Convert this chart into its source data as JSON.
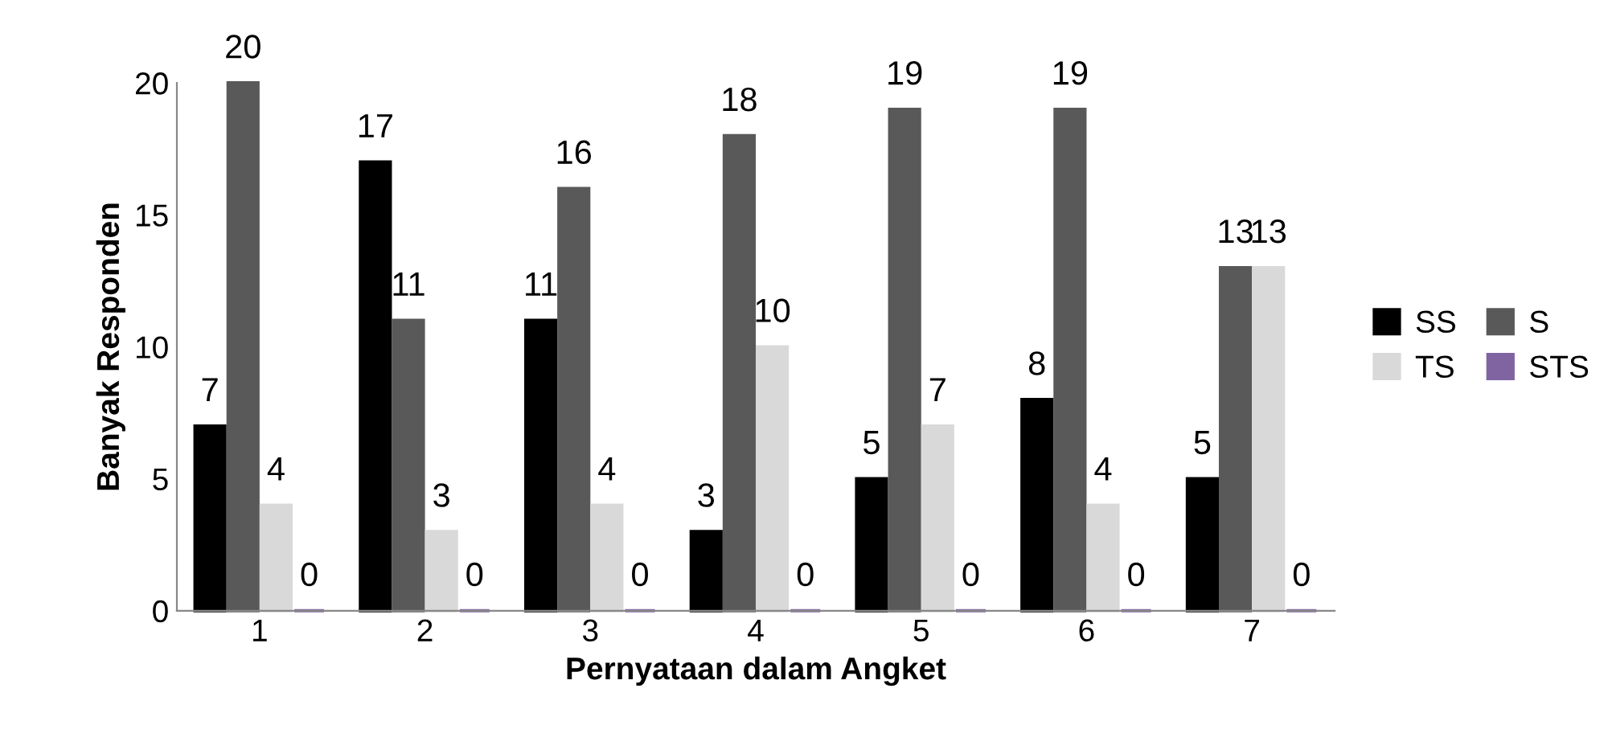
{
  "chart_data": {
    "type": "bar",
    "xlabel": "Pernyataan dalam Angket",
    "ylabel": "Banyak Responden",
    "categories": [
      "1",
      "2",
      "3",
      "4",
      "5",
      "6",
      "7"
    ],
    "series": [
      {
        "name": "SS",
        "color": "#000000",
        "values": [
          7,
          17,
          11,
          3,
          5,
          8,
          5
        ]
      },
      {
        "name": "S",
        "color": "#595959",
        "values": [
          20,
          11,
          16,
          18,
          19,
          19,
          13
        ]
      },
      {
        "name": "TS",
        "color": "#d9d9d9",
        "values": [
          4,
          3,
          4,
          10,
          7,
          4,
          13
        ]
      },
      {
        "name": "STS",
        "color": "#8064a2",
        "values": [
          0,
          0,
          0,
          0,
          0,
          0,
          0
        ]
      }
    ],
    "ylim": [
      0,
      20
    ],
    "yticks": [
      0,
      5,
      10,
      15,
      20
    ],
    "grid": false,
    "legend": "right",
    "data_labels": true
  }
}
